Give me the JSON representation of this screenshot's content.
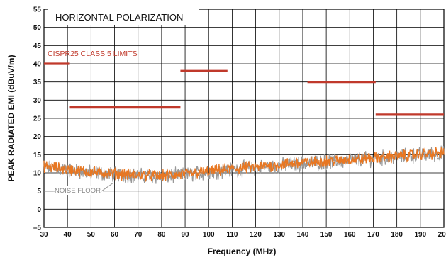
{
  "chart_data": {
    "type": "line",
    "title": "HORIZONTAL POLARIZATION",
    "xlabel": "Frequency (MHz)",
    "ylabel": "PEAK RADIATED EMI (dBuV/m)",
    "xlim": [
      30,
      200
    ],
    "ylim": [
      -5,
      55
    ],
    "x_ticks": [
      30,
      40,
      50,
      60,
      70,
      80,
      90,
      100,
      110,
      120,
      130,
      140,
      150,
      160,
      170,
      180,
      190,
      200
    ],
    "y_ticks": [
      -5,
      0,
      5,
      10,
      15,
      20,
      25,
      30,
      35,
      40,
      45,
      50,
      55
    ],
    "y_tick_labels": [
      "–5",
      "0",
      "5",
      "10",
      "15",
      "20",
      "25",
      "30",
      "35",
      "40",
      "45",
      "50",
      "55"
    ],
    "grid": true,
    "limits_label": "CISPR25 CLASS 5 LIMITS",
    "limit_segments": [
      {
        "x": [
          30,
          41
        ],
        "y": 40
      },
      {
        "x": [
          41,
          88
        ],
        "y": 28
      },
      {
        "x": [
          88,
          108
        ],
        "y": 38
      },
      {
        "x": [
          142,
          171
        ],
        "y": 35
      },
      {
        "x": [
          171,
          200
        ],
        "y": 26
      }
    ],
    "noise_floor_label": "NOISE FLOOR",
    "series": [
      {
        "color": "#999999",
        "x": [
          30,
          40,
          50,
          60,
          70,
          80,
          90,
          100,
          110,
          120,
          130,
          140,
          150,
          160,
          170,
          180,
          190,
          200
        ],
        "y": [
          11.5,
          10.8,
          10.0,
          9.6,
          9.2,
          9.0,
          9.4,
          10.2,
          10.9,
          11.4,
          12.0,
          12.6,
          13.0,
          13.5,
          13.9,
          14.4,
          14.9,
          15.3
        ]
      },
      {
        "color": "#e87722",
        "x": [
          30,
          40,
          50,
          60,
          70,
          80,
          90,
          100,
          110,
          120,
          130,
          140,
          150,
          160,
          170,
          180,
          190,
          200
        ],
        "y": [
          11.8,
          11.0,
          10.2,
          9.8,
          9.4,
          9.2,
          9.6,
          10.4,
          11.1,
          11.6,
          12.2,
          12.8,
          13.2,
          13.7,
          14.1,
          14.6,
          15.1,
          15.5
        ]
      }
    ],
    "colors": {
      "limit": "#c0392b",
      "grid": "#000000",
      "noise": "#999999",
      "emi": "#e87722"
    }
  }
}
